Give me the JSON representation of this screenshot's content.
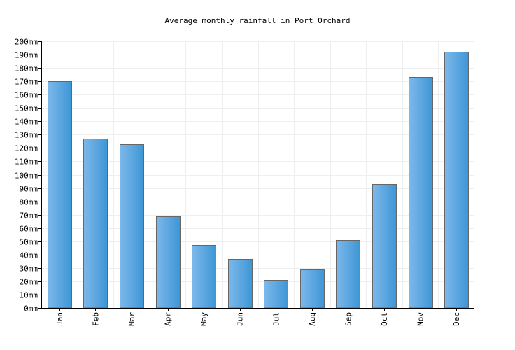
{
  "chart_data": {
    "type": "bar",
    "title": "Average monthly rainfall in Port Orchard",
    "xlabel": "",
    "ylabel": "",
    "categories": [
      "Jan",
      "Feb",
      "Mar",
      "Apr",
      "May",
      "Jun",
      "Jul",
      "Aug",
      "Sep",
      "Oct",
      "Nov",
      "Dec"
    ],
    "values": [
      170,
      127,
      123,
      69,
      47,
      37,
      21,
      29,
      51,
      93,
      173,
      192
    ],
    "unit": "mm",
    "ylim": [
      0,
      200
    ],
    "ytick_step": 10,
    "grid": true,
    "colors": {
      "bar_light": "#7db8ea",
      "bar_dark": "#3d96d6",
      "bar_stroke": "#666666",
      "grid": "#eeeeee",
      "axis": "#000000"
    }
  }
}
